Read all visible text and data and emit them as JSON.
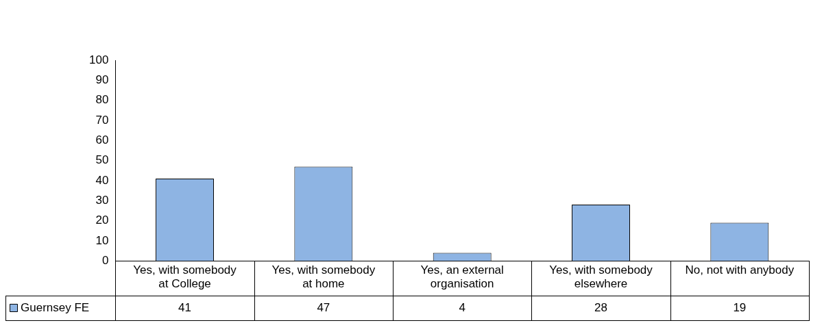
{
  "chart_data": {
    "type": "bar",
    "categories": [
      "Yes, with somebody at College",
      "Yes, with somebody at home",
      "Yes, an external organisation",
      "Yes, with somebody elsewhere",
      "No, not with anybody"
    ],
    "series": [
      {
        "name": "Guernsey FE",
        "color": "#8eb4e3",
        "values": [
          41,
          47,
          4,
          28,
          19
        ]
      }
    ],
    "ylim": [
      0,
      100
    ],
    "yticks": [
      0,
      10,
      20,
      30,
      40,
      50,
      60,
      70,
      80,
      90,
      100
    ],
    "grid": false,
    "legend": "bottom",
    "data_labels": true
  }
}
